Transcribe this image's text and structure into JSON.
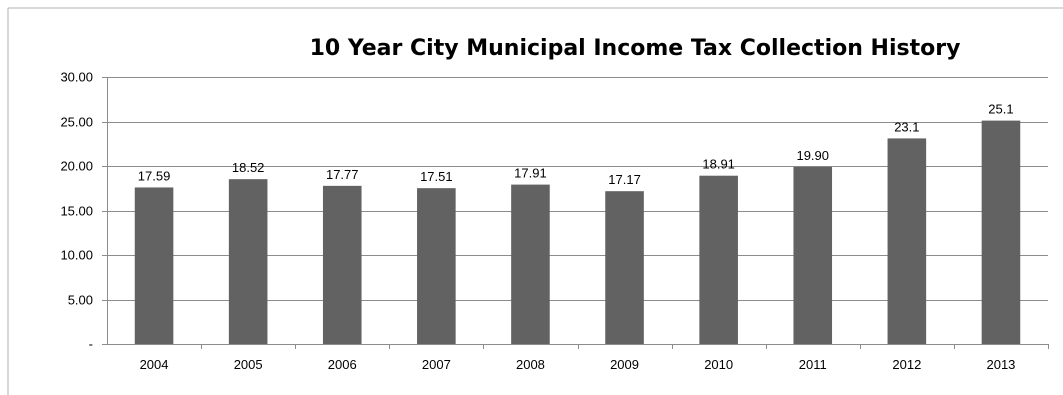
{
  "chart_data": {
    "type": "bar",
    "title": "10 Year City Municipal Income Tax Collection History",
    "xlabel": "",
    "ylabel": "",
    "categories": [
      "2004",
      "2005",
      "2006",
      "2007",
      "2008",
      "2009",
      "2010",
      "2011",
      "2012",
      "2013"
    ],
    "values": [
      17.59,
      18.52,
      17.77,
      17.51,
      17.91,
      17.17,
      18.91,
      19.9,
      23.1,
      25.1
    ],
    "value_labels": [
      "17.59",
      "18.52",
      "17.77",
      "17.51",
      "17.91",
      "17.17",
      "18.91",
      "19.90",
      "23.1",
      "25.1"
    ],
    "ylim": [
      0,
      30
    ],
    "yticks": [
      0,
      5,
      10,
      15,
      20,
      25,
      30
    ],
    "ytick_labels": [
      "-",
      "5.00",
      "10.00",
      "15.00",
      "20.00",
      "25.00",
      "30.00"
    ],
    "grid": true,
    "legend": "none",
    "colors": {
      "bar": "#626262",
      "grid": "#8c8c8c",
      "axis": "#8c8c8c",
      "border": "#b0b0b0"
    }
  }
}
